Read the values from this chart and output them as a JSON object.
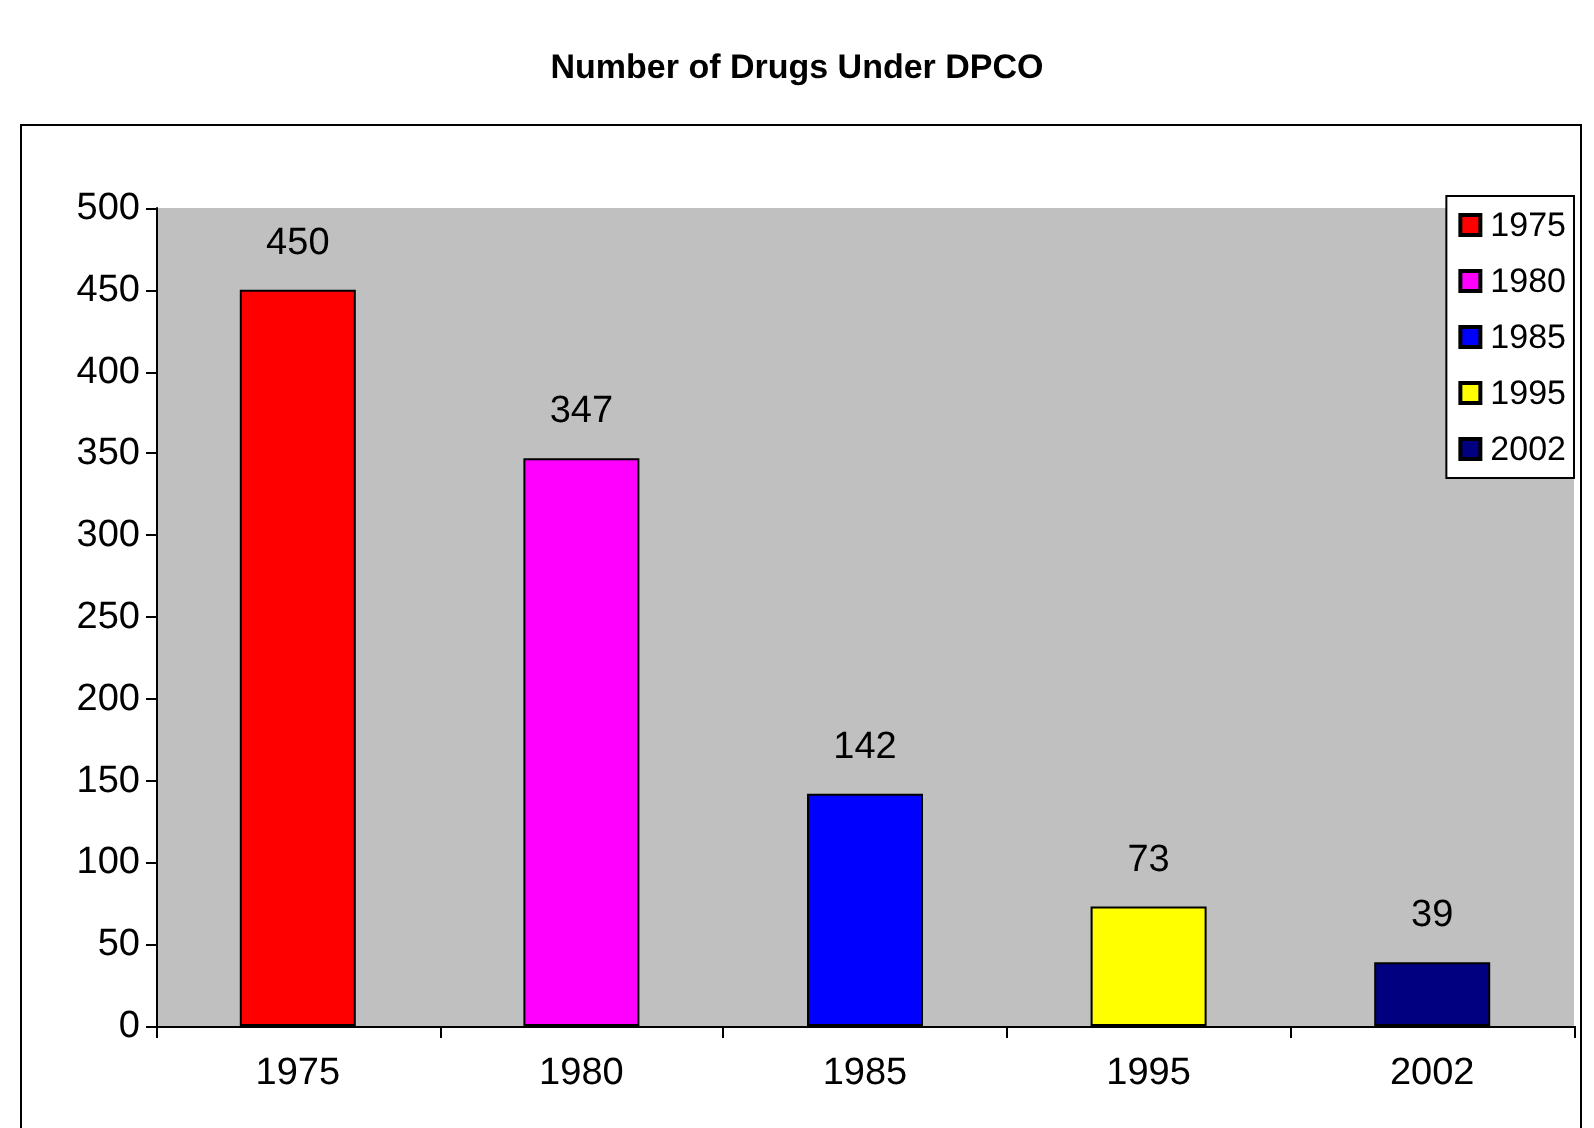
{
  "chart_data": {
    "type": "bar",
    "title": "Number of Drugs Under DPCO",
    "categories": [
      "1975",
      "1980",
      "1985",
      "1995",
      "2002"
    ],
    "stacked": true,
    "series": [
      {
        "name": "1975",
        "color": "#ff0000",
        "values": [
          450,
          null,
          null,
          null,
          null
        ]
      },
      {
        "name": "1980",
        "color": "#ff00ff",
        "values": [
          null,
          347,
          null,
          null,
          null
        ]
      },
      {
        "name": "1985",
        "color": "#0000ff",
        "values": [
          null,
          null,
          142,
          null,
          null
        ]
      },
      {
        "name": "1995",
        "color": "#ffff00",
        "values": [
          null,
          null,
          null,
          73,
          null
        ]
      },
      {
        "name": "2002",
        "color": "#000080",
        "values": [
          null,
          null,
          null,
          null,
          39
        ]
      }
    ],
    "ylim": [
      0,
      500
    ],
    "yticks": [
      0,
      50,
      100,
      150,
      200,
      250,
      300,
      350,
      400,
      450,
      500
    ],
    "grid": false,
    "legend": "top right",
    "data_labels": true
  }
}
